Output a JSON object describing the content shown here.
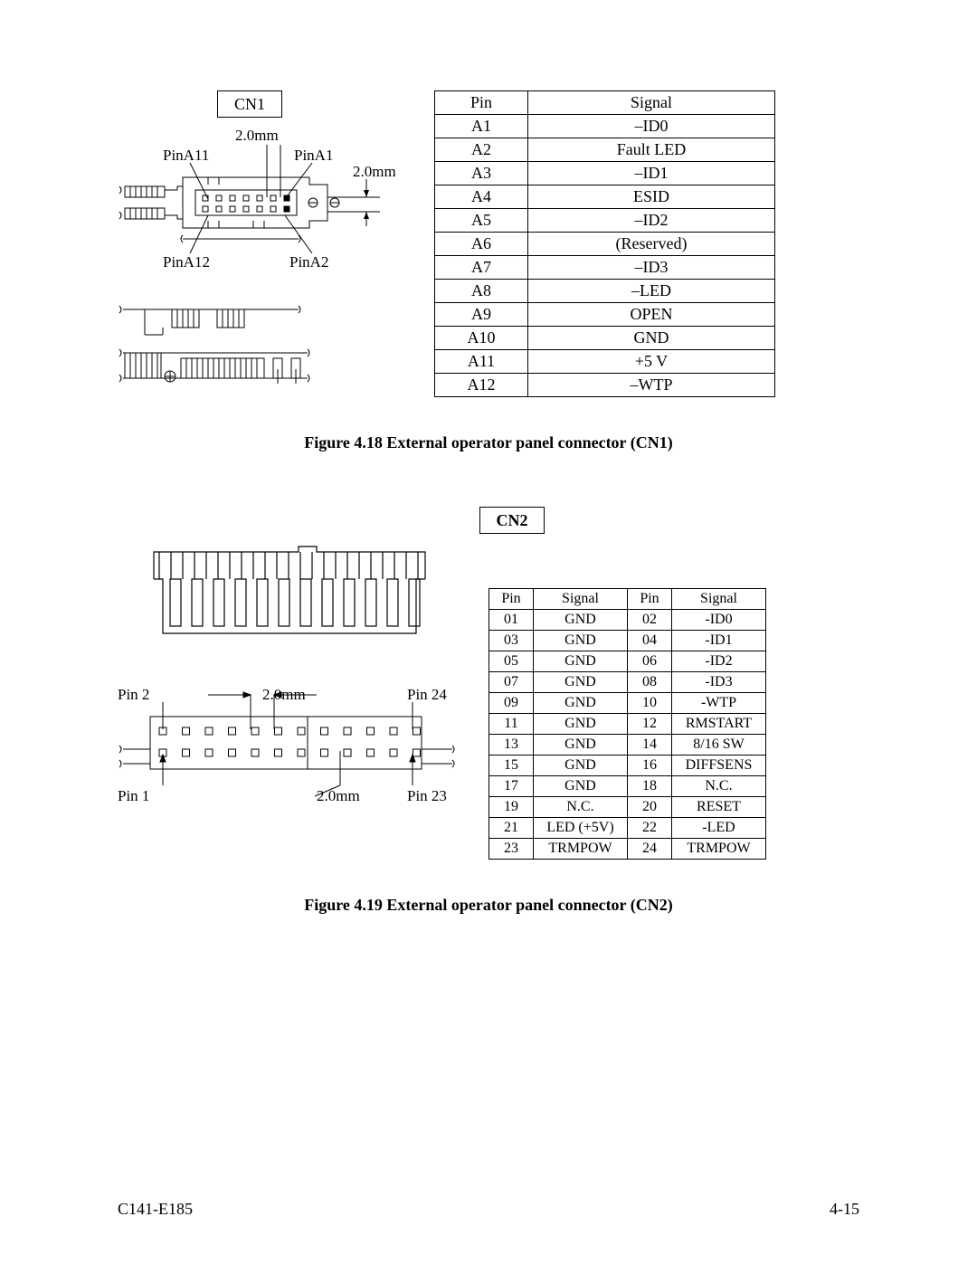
{
  "cn1": {
    "box_label": "CN1",
    "pitch_h": "2.0mm",
    "pitch_v": "2.0mm",
    "labels": {
      "pinA11": "PinA11",
      "pinA1": "PinA1",
      "pinA12": "PinA12",
      "pinA2": "PinA2"
    },
    "table": {
      "headers": [
        "Pin",
        "Signal"
      ],
      "rows": [
        [
          "A1",
          "–ID0"
        ],
        [
          "A2",
          "Fault LED"
        ],
        [
          "A3",
          "–ID1"
        ],
        [
          "A4",
          "ESID"
        ],
        [
          "A5",
          "–ID2"
        ],
        [
          "A6",
          "(Reserved)"
        ],
        [
          "A7",
          "–ID3"
        ],
        [
          "A8",
          "–LED"
        ],
        [
          "A9",
          "OPEN"
        ],
        [
          "A10",
          "GND"
        ],
        [
          "A11",
          "+5 V"
        ],
        [
          "A12",
          "–WTP"
        ]
      ]
    },
    "caption": "Figure 4.18   External operator panel connector (CN1)"
  },
  "cn2": {
    "box_label": "CN2",
    "labels": {
      "pin2": "Pin 2",
      "pin24": "Pin 24",
      "pin1": "Pin 1",
      "pin23": "Pin 23",
      "pitch_h": "2.0mm",
      "pitch_v": "2.0mm"
    },
    "table": {
      "headers": [
        "Pin",
        "Signal",
        "Pin",
        "Signal"
      ],
      "rows": [
        [
          "01",
          "GND",
          "02",
          "-ID0"
        ],
        [
          "03",
          "GND",
          "04",
          "-ID1"
        ],
        [
          "05",
          "GND",
          "06",
          "-ID2"
        ],
        [
          "07",
          "GND",
          "08",
          "-ID3"
        ],
        [
          "09",
          "GND",
          "10",
          "-WTP"
        ],
        [
          "11",
          "GND",
          "12",
          "RMSTART"
        ],
        [
          "13",
          "GND",
          "14",
          "8/16 SW"
        ],
        [
          "15",
          "GND",
          "16",
          "DIFFSENS"
        ],
        [
          "17",
          "GND",
          "18",
          "N.C."
        ],
        [
          "19",
          "N.C.",
          "20",
          "RESET"
        ],
        [
          "21",
          "LED (+5V)",
          "22",
          "-LED"
        ],
        [
          "23",
          "TRMPOW",
          "24",
          "TRMPOW"
        ]
      ]
    },
    "caption": "Figure 4.19   External operator panel connector (CN2)"
  },
  "footer": {
    "left": "C141-E185",
    "right": "4-15"
  },
  "style": {
    "stroke": "#000000",
    "bg": "#ffffff",
    "font_family": "Times New Roman"
  }
}
